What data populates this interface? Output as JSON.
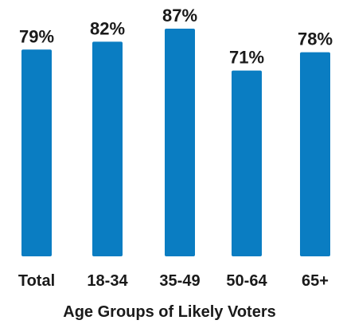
{
  "chart_data": {
    "type": "bar",
    "categories": [
      "Total",
      "18-34",
      "35-49",
      "50-64",
      "65+"
    ],
    "values": [
      79,
      82,
      87,
      71,
      78
    ],
    "value_labels": [
      "79%",
      "82%",
      "87%",
      "71%",
      "78%"
    ],
    "title": "",
    "xlabel": "Age Groups of Likely Voters",
    "ylabel": "",
    "ylim": [
      0,
      87
    ],
    "grid": false,
    "legend": "none",
    "bar_color": "#0a7dc2"
  }
}
